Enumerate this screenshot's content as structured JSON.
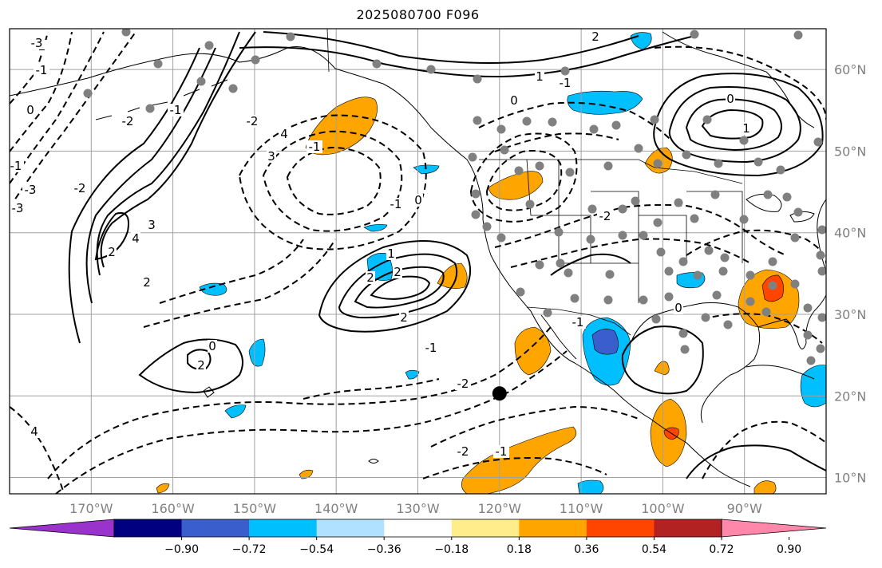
{
  "title": "2025080700 F096",
  "map": {
    "projection": "equirectangular",
    "lon_range": [
      -180,
      -80
    ],
    "lat_range": [
      8,
      65
    ],
    "longitude_ticks": [
      {
        "value": -170,
        "label": "170°W"
      },
      {
        "value": -160,
        "label": "160°W"
      },
      {
        "value": -150,
        "label": "150°W"
      },
      {
        "value": -140,
        "label": "140°W"
      },
      {
        "value": -130,
        "label": "130°W"
      },
      {
        "value": -120,
        "label": "120°W"
      },
      {
        "value": -110,
        "label": "110°W"
      },
      {
        "value": -100,
        "label": "100°W"
      },
      {
        "value": -90,
        "label": "90°W"
      }
    ],
    "latitude_ticks": [
      {
        "value": 60,
        "label": "60°N"
      },
      {
        "value": 50,
        "label": "50°N"
      },
      {
        "value": 40,
        "label": "40°N"
      },
      {
        "value": 30,
        "label": "30°N"
      },
      {
        "value": 20,
        "label": "20°N"
      },
      {
        "value": 10,
        "label": "10°N"
      }
    ],
    "grid": true,
    "marker": {
      "lon": -120,
      "lat": 20.3,
      "color": "#000000"
    },
    "contour_labels": [
      "-2",
      "-1",
      "0",
      "-1",
      "-3",
      "-2",
      "2",
      "4",
      "3",
      "2",
      "-2",
      "-1",
      "-3",
      "0",
      "2",
      "4",
      "-3",
      "2",
      "2",
      "-1",
      "-2",
      "-1",
      "0",
      "1",
      "2",
      "-2",
      "-1",
      "0",
      "1",
      "-1",
      "2",
      "3",
      "4",
      "-1",
      "-2",
      "-1",
      "-2",
      "0",
      "1",
      "0"
    ]
  },
  "colorbar": {
    "colors": [
      "#9933cc",
      "#000080",
      "#3a5fcd",
      "#00bfff",
      "#b0e2ff",
      "#ffffff",
      "#ffec8b",
      "#ffa500",
      "#ff4500",
      "#b22222",
      "#ff88aa"
    ],
    "tick_labels": [
      "−0.90",
      "−0.72",
      "−0.54",
      "−0.36",
      "−0.18",
      "0.18",
      "0.36",
      "0.54",
      "0.72",
      "0.90"
    ],
    "extend": "both"
  }
}
